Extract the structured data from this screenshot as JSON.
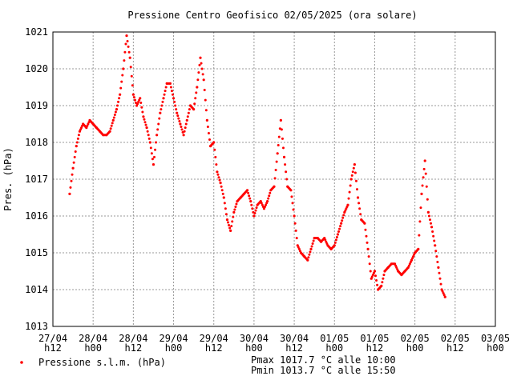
{
  "chart_data": {
    "type": "scatter",
    "title": "Pressione Centro Geofisico 02/05/2025 (ora solare)",
    "ylabel": "Pres. (hPa)",
    "xlabel": "",
    "ylim": [
      1013,
      1021
    ],
    "yticks": [
      "1013",
      "1014",
      "1015",
      "1016",
      "1017",
      "1018",
      "1019",
      "1020",
      "1021"
    ],
    "xlim": [
      0,
      264
    ],
    "xticks": [
      {
        "date": "27/04",
        "hour": "h12"
      },
      {
        "date": "28/04",
        "hour": "h00"
      },
      {
        "date": "28/04",
        "hour": "h12"
      },
      {
        "date": "29/04",
        "hour": "h00"
      },
      {
        "date": "29/04",
        "hour": "h12"
      },
      {
        "date": "30/04",
        "hour": "h00"
      },
      {
        "date": "30/04",
        "hour": "h12"
      },
      {
        "date": "01/05",
        "hour": "h00"
      },
      {
        "date": "01/05",
        "hour": "h12"
      },
      {
        "date": "02/05",
        "hour": "h00"
      },
      {
        "date": "02/05",
        "hour": "h12"
      },
      {
        "date": "03/05",
        "hour": "h00"
      }
    ],
    "grid": true,
    "color": "#ff0000",
    "legend": {
      "position": "bottom-left",
      "label": "Pressione s.l.m. (hPa)"
    },
    "series": [
      {
        "name": "Pressione s.l.m. (hPa)",
        "points": [
          [
            10,
            1016.6
          ],
          [
            12,
            1017.3
          ],
          [
            14,
            1017.9
          ],
          [
            16,
            1018.3
          ],
          [
            18,
            1018.5
          ],
          [
            20,
            1018.4
          ],
          [
            22,
            1018.6
          ],
          [
            24,
            1018.5
          ],
          [
            26,
            1018.4
          ],
          [
            28,
            1018.3
          ],
          [
            30,
            1018.2
          ],
          [
            32,
            1018.2
          ],
          [
            34,
            1018.3
          ],
          [
            36,
            1018.6
          ],
          [
            38,
            1018.9
          ],
          [
            40,
            1019.3
          ],
          [
            42,
            1020.0
          ],
          [
            44,
            1020.9
          ],
          [
            46,
            1020.3
          ],
          [
            48,
            1019.3
          ],
          [
            50,
            1019.0
          ],
          [
            52,
            1019.2
          ],
          [
            54,
            1018.7
          ],
          [
            56,
            1018.4
          ],
          [
            58,
            1018.0
          ],
          [
            60,
            1017.4
          ],
          [
            62,
            1018.2
          ],
          [
            64,
            1018.8
          ],
          [
            66,
            1019.2
          ],
          [
            68,
            1019.6
          ],
          [
            70,
            1019.6
          ],
          [
            72,
            1019.2
          ],
          [
            74,
            1018.8
          ],
          [
            76,
            1018.5
          ],
          [
            78,
            1018.2
          ],
          [
            80,
            1018.6
          ],
          [
            82,
            1019.0
          ],
          [
            84,
            1018.9
          ],
          [
            86,
            1019.5
          ],
          [
            88,
            1020.3
          ],
          [
            90,
            1019.7
          ],
          [
            92,
            1018.6
          ],
          [
            94,
            1017.9
          ],
          [
            96,
            1018.0
          ],
          [
            98,
            1017.2
          ],
          [
            100,
            1016.9
          ],
          [
            102,
            1016.5
          ],
          [
            104,
            1015.9
          ],
          [
            106,
            1015.6
          ],
          [
            108,
            1016.1
          ],
          [
            110,
            1016.4
          ],
          [
            112,
            1016.5
          ],
          [
            114,
            1016.6
          ],
          [
            116,
            1016.7
          ],
          [
            118,
            1016.4
          ],
          [
            120,
            1016.0
          ],
          [
            122,
            1016.3
          ],
          [
            124,
            1016.4
          ],
          [
            126,
            1016.2
          ],
          [
            128,
            1016.4
          ],
          [
            130,
            1016.7
          ],
          [
            132,
            1016.8
          ],
          [
            134,
            1017.7
          ],
          [
            136,
            1018.6
          ],
          [
            138,
            1017.6
          ],
          [
            140,
            1016.8
          ],
          [
            142,
            1016.7
          ],
          [
            144,
            1016.0
          ],
          [
            146,
            1015.2
          ],
          [
            148,
            1015.0
          ],
          [
            150,
            1014.9
          ],
          [
            152,
            1014.8
          ],
          [
            154,
            1015.1
          ],
          [
            156,
            1015.4
          ],
          [
            158,
            1015.4
          ],
          [
            160,
            1015.3
          ],
          [
            162,
            1015.4
          ],
          [
            164,
            1015.2
          ],
          [
            166,
            1015.1
          ],
          [
            168,
            1015.2
          ],
          [
            170,
            1015.5
          ],
          [
            172,
            1015.8
          ],
          [
            174,
            1016.1
          ],
          [
            176,
            1016.3
          ],
          [
            178,
            1017.0
          ],
          [
            180,
            1017.4
          ],
          [
            182,
            1016.5
          ],
          [
            184,
            1015.9
          ],
          [
            186,
            1015.8
          ],
          [
            188,
            1015.1
          ],
          [
            190,
            1014.3
          ],
          [
            192,
            1014.5
          ],
          [
            194,
            1014.0
          ],
          [
            196,
            1014.1
          ],
          [
            198,
            1014.5
          ],
          [
            200,
            1014.6
          ],
          [
            202,
            1014.7
          ],
          [
            204,
            1014.7
          ],
          [
            206,
            1014.5
          ],
          [
            208,
            1014.4
          ],
          [
            210,
            1014.5
          ],
          [
            212,
            1014.6
          ],
          [
            214,
            1014.8
          ],
          [
            216,
            1015.0
          ],
          [
            218,
            1015.1
          ],
          [
            220,
            1016.6
          ],
          [
            222,
            1017.5
          ],
          [
            224,
            1016.1
          ],
          [
            226,
            1015.7
          ],
          [
            228,
            1015.2
          ],
          [
            230,
            1014.6
          ],
          [
            232,
            1014.0
          ],
          [
            234,
            1013.8
          ]
        ]
      }
    ]
  },
  "summary": {
    "pmax": "Pmax 1017.7 °C alle 10:00",
    "pmin": "Pmin 1013.7 °C alle 15:50"
  }
}
